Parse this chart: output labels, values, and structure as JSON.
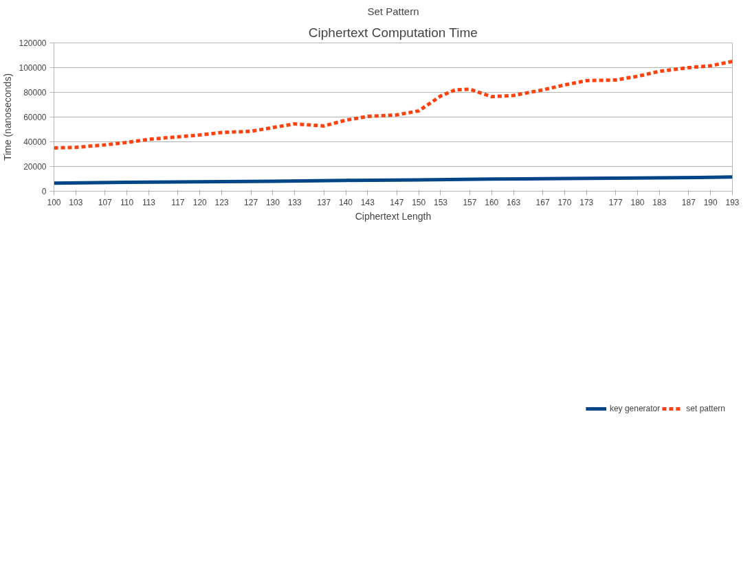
{
  "chart_data": {
    "type": "line",
    "title": "Ciphertext Computation Time",
    "subtitle": "Set Pattern",
    "xlabel": "Ciphertext Length",
    "ylabel": "Time (nanoseconds)",
    "xlim": [
      100,
      193
    ],
    "xticks": [
      100,
      103,
      107,
      110,
      113,
      117,
      120,
      123,
      127,
      130,
      133,
      137,
      140,
      143,
      147,
      150,
      153,
      157,
      160,
      163,
      167,
      170,
      173,
      177,
      180,
      183,
      187,
      190,
      193
    ],
    "ylim": [
      0,
      120000
    ],
    "yticks": [
      0,
      20000,
      40000,
      60000,
      80000,
      100000,
      120000
    ],
    "grid": "y",
    "legend": "bottom",
    "series": [
      {
        "name": "key generator",
        "color": "#004586",
        "line_style": "solid",
        "x": [
          100,
          110,
          120,
          130,
          140,
          150,
          160,
          170,
          180,
          190,
          193
        ],
        "values": [
          6500,
          7200,
          7700,
          8100,
          8800,
          9200,
          9800,
          10300,
          10700,
          11200,
          11500
        ]
      },
      {
        "name": "set pattern",
        "color": "#ff420e",
        "line_style": "dashed",
        "x": [
          100,
          103,
          107,
          110,
          113,
          117,
          120,
          123,
          127,
          130,
          133,
          137,
          140,
          143,
          147,
          150,
          153,
          155,
          157,
          160,
          163,
          167,
          170,
          173,
          177,
          180,
          183,
          187,
          190,
          193
        ],
        "values": [
          35000,
          35500,
          37500,
          39500,
          42000,
          44000,
          45500,
          47500,
          48500,
          51500,
          54500,
          52800,
          57500,
          60500,
          61800,
          65000,
          77000,
          82000,
          82500,
          76500,
          77500,
          82000,
          86000,
          89500,
          90000,
          93000,
          97000,
          100000,
          101500,
          105000
        ]
      }
    ]
  }
}
